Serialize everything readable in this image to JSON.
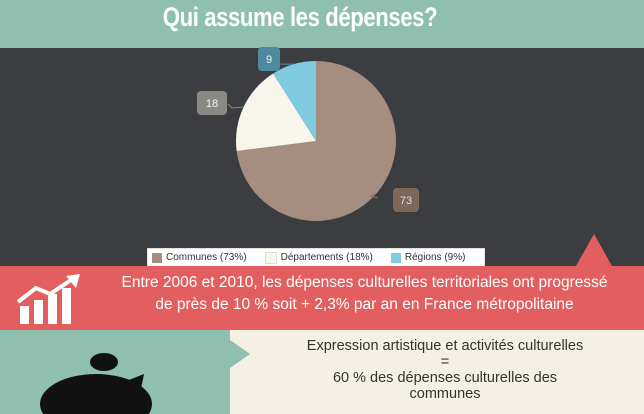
{
  "header": {
    "title": "Qui assume les dépenses?"
  },
  "chart_data": {
    "type": "pie",
    "categories": [
      "Communes (73%)",
      "Départements (18%)",
      "Régions (9%)"
    ],
    "values": [
      73,
      18,
      9
    ],
    "colors": [
      "#a58d7f",
      "#f8f5ec",
      "#7fcbe2"
    ],
    "data_labels": [
      "73",
      "18",
      "9"
    ],
    "legend_position": "bottom"
  },
  "banner": {
    "line1": "Entre 2006 et 2010, les dépenses culturelles territoriales ont progressé",
    "line2": "de près de 10 % soit + 2,3% par an en France métropolitaine",
    "icon": "growth-chart-icon"
  },
  "bottom": {
    "line1": "Expression artistique et activités culturelles",
    "line2": "=",
    "line3": "60 % des dépenses culturelles des",
    "line4": "communes",
    "icon": "piggy-bank-icon"
  },
  "colors": {
    "header_bg": "#8fbfae",
    "chart_bg": "#3b3d40",
    "banner_bg": "#e35f5f",
    "bottom_bg": "#f4f0e3"
  }
}
